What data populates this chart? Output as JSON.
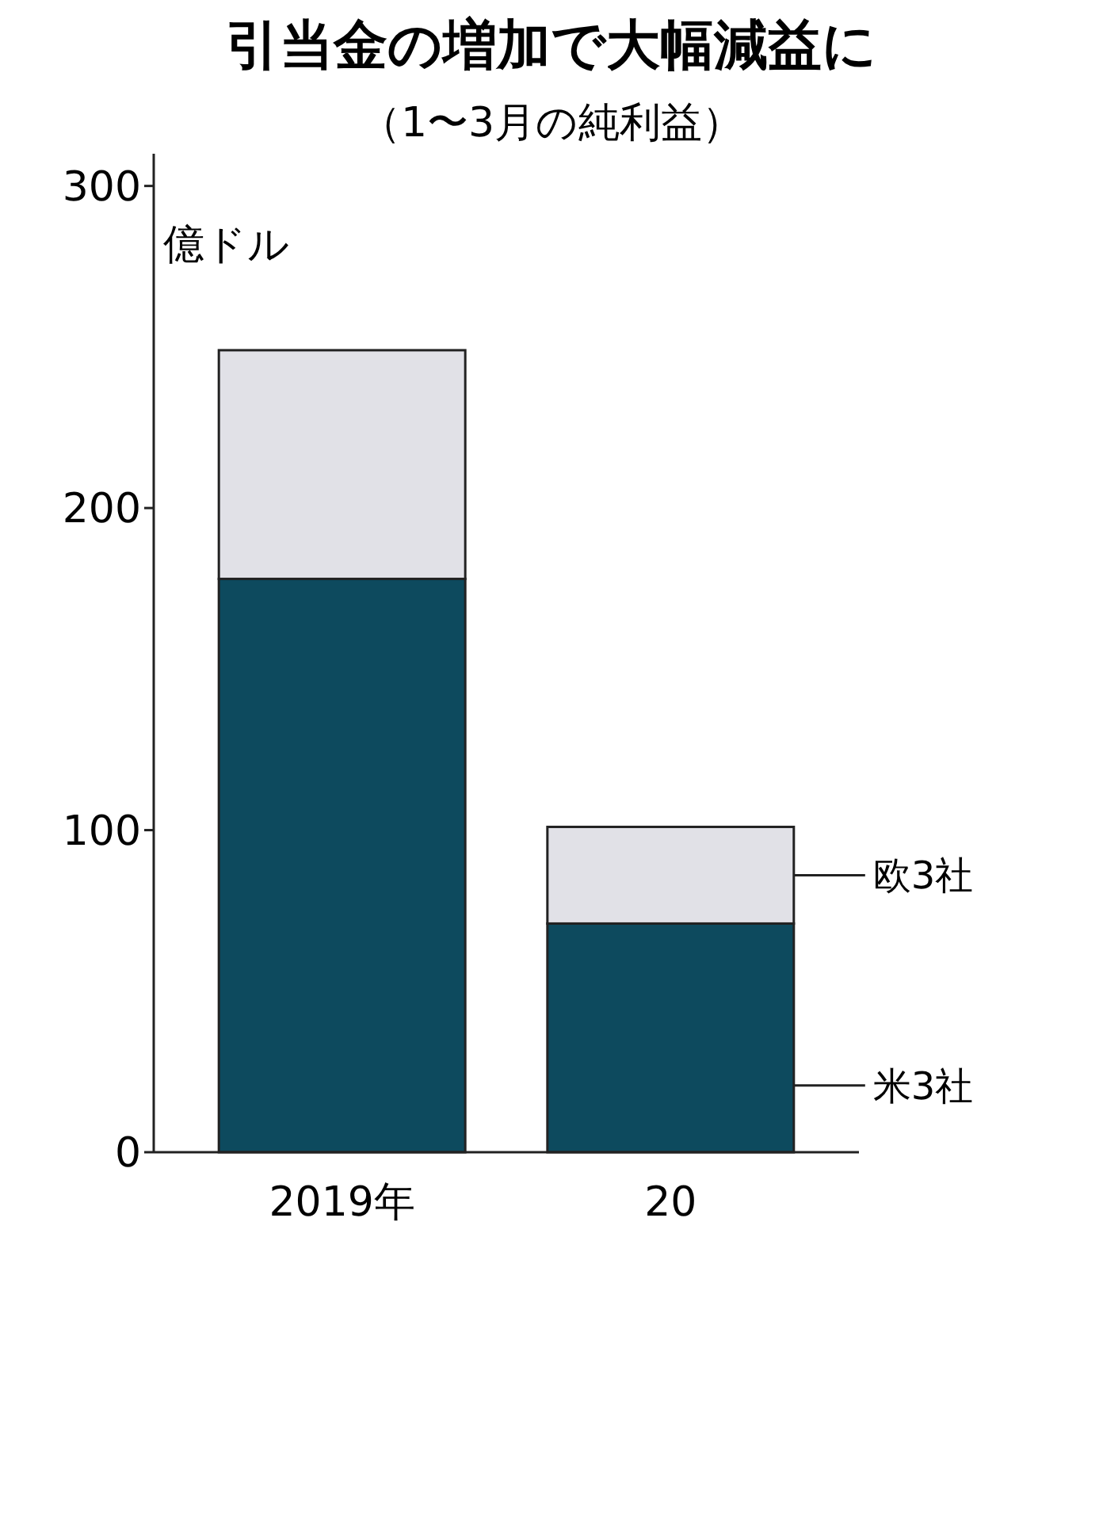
{
  "chart_data": {
    "type": "bar",
    "title": "引当金の増加で大幅減益に",
    "subtitle": "（1〜3月の純利益）",
    "ylabel": "億ドル",
    "categories": [
      "2019年",
      "20"
    ],
    "stacked": true,
    "ylim": [
      0,
      310
    ],
    "yticks": [
      0,
      100,
      200,
      300
    ],
    "grid": false,
    "legend": "right",
    "series": [
      {
        "name": "米3社",
        "color": "#0d4a5e",
        "values": [
          178,
          71
        ]
      },
      {
        "name": "欧3社",
        "color": "#e1e1e7",
        "values": [
          71,
          30
        ]
      }
    ]
  }
}
